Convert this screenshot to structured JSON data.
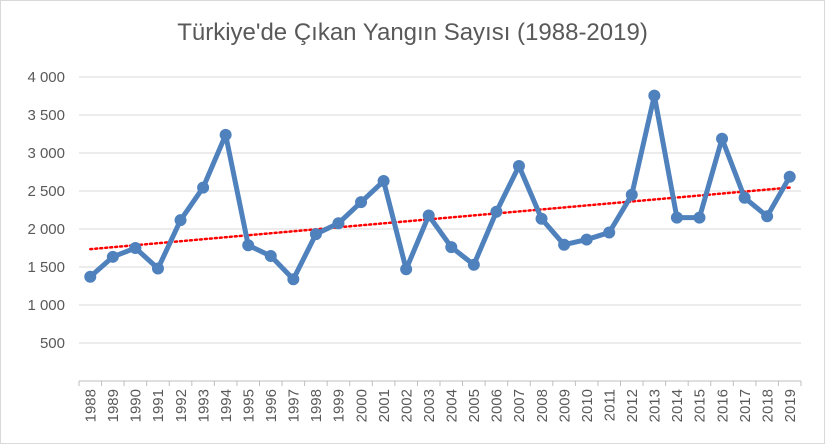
{
  "chart_data": {
    "type": "line",
    "title": "Türkiye'de Çıkan Yangın Sayısı (1988-2019)",
    "xlabel": "",
    "ylabel": "",
    "categories": [
      "1988",
      "1989",
      "1990",
      "1991",
      "1992",
      "1993",
      "1994",
      "1995",
      "1996",
      "1997",
      "1998",
      "1999",
      "2000",
      "2001",
      "2002",
      "2003",
      "2004",
      "2005",
      "2006",
      "2007",
      "2008",
      "2009",
      "2010",
      "2011",
      "2012",
      "2013",
      "2014",
      "2015",
      "2016",
      "2017",
      "2018",
      "2019"
    ],
    "series": [
      {
        "values": [
          1372,
          1634,
          1750,
          1480,
          2116,
          2545,
          3239,
          1786,
          1645,
          1339,
          1932,
          2075,
          2353,
          2631,
          1471,
          2177,
          1762,
          1530,
          2227,
          2829,
          2135,
          1793,
          1861,
          1954,
          2450,
          3755,
          2149,
          2150,
          3188,
          2411,
          2167,
          2688
        ],
        "color": "#4f81bd"
      }
    ],
    "trendline": {
      "style": "dotted",
      "color": "#ff0000",
      "start": 1735,
      "end": 2545
    },
    "y_ticks": [
      "500",
      "1 000",
      "1 500",
      "2 000",
      "2 500",
      "3 000",
      "3 500",
      "4 000"
    ],
    "y_tick_values": [
      500,
      1000,
      1500,
      2000,
      2500,
      3000,
      3500,
      4000
    ],
    "ylim": [
      0,
      4000
    ],
    "grid": true,
    "legend": "none"
  }
}
